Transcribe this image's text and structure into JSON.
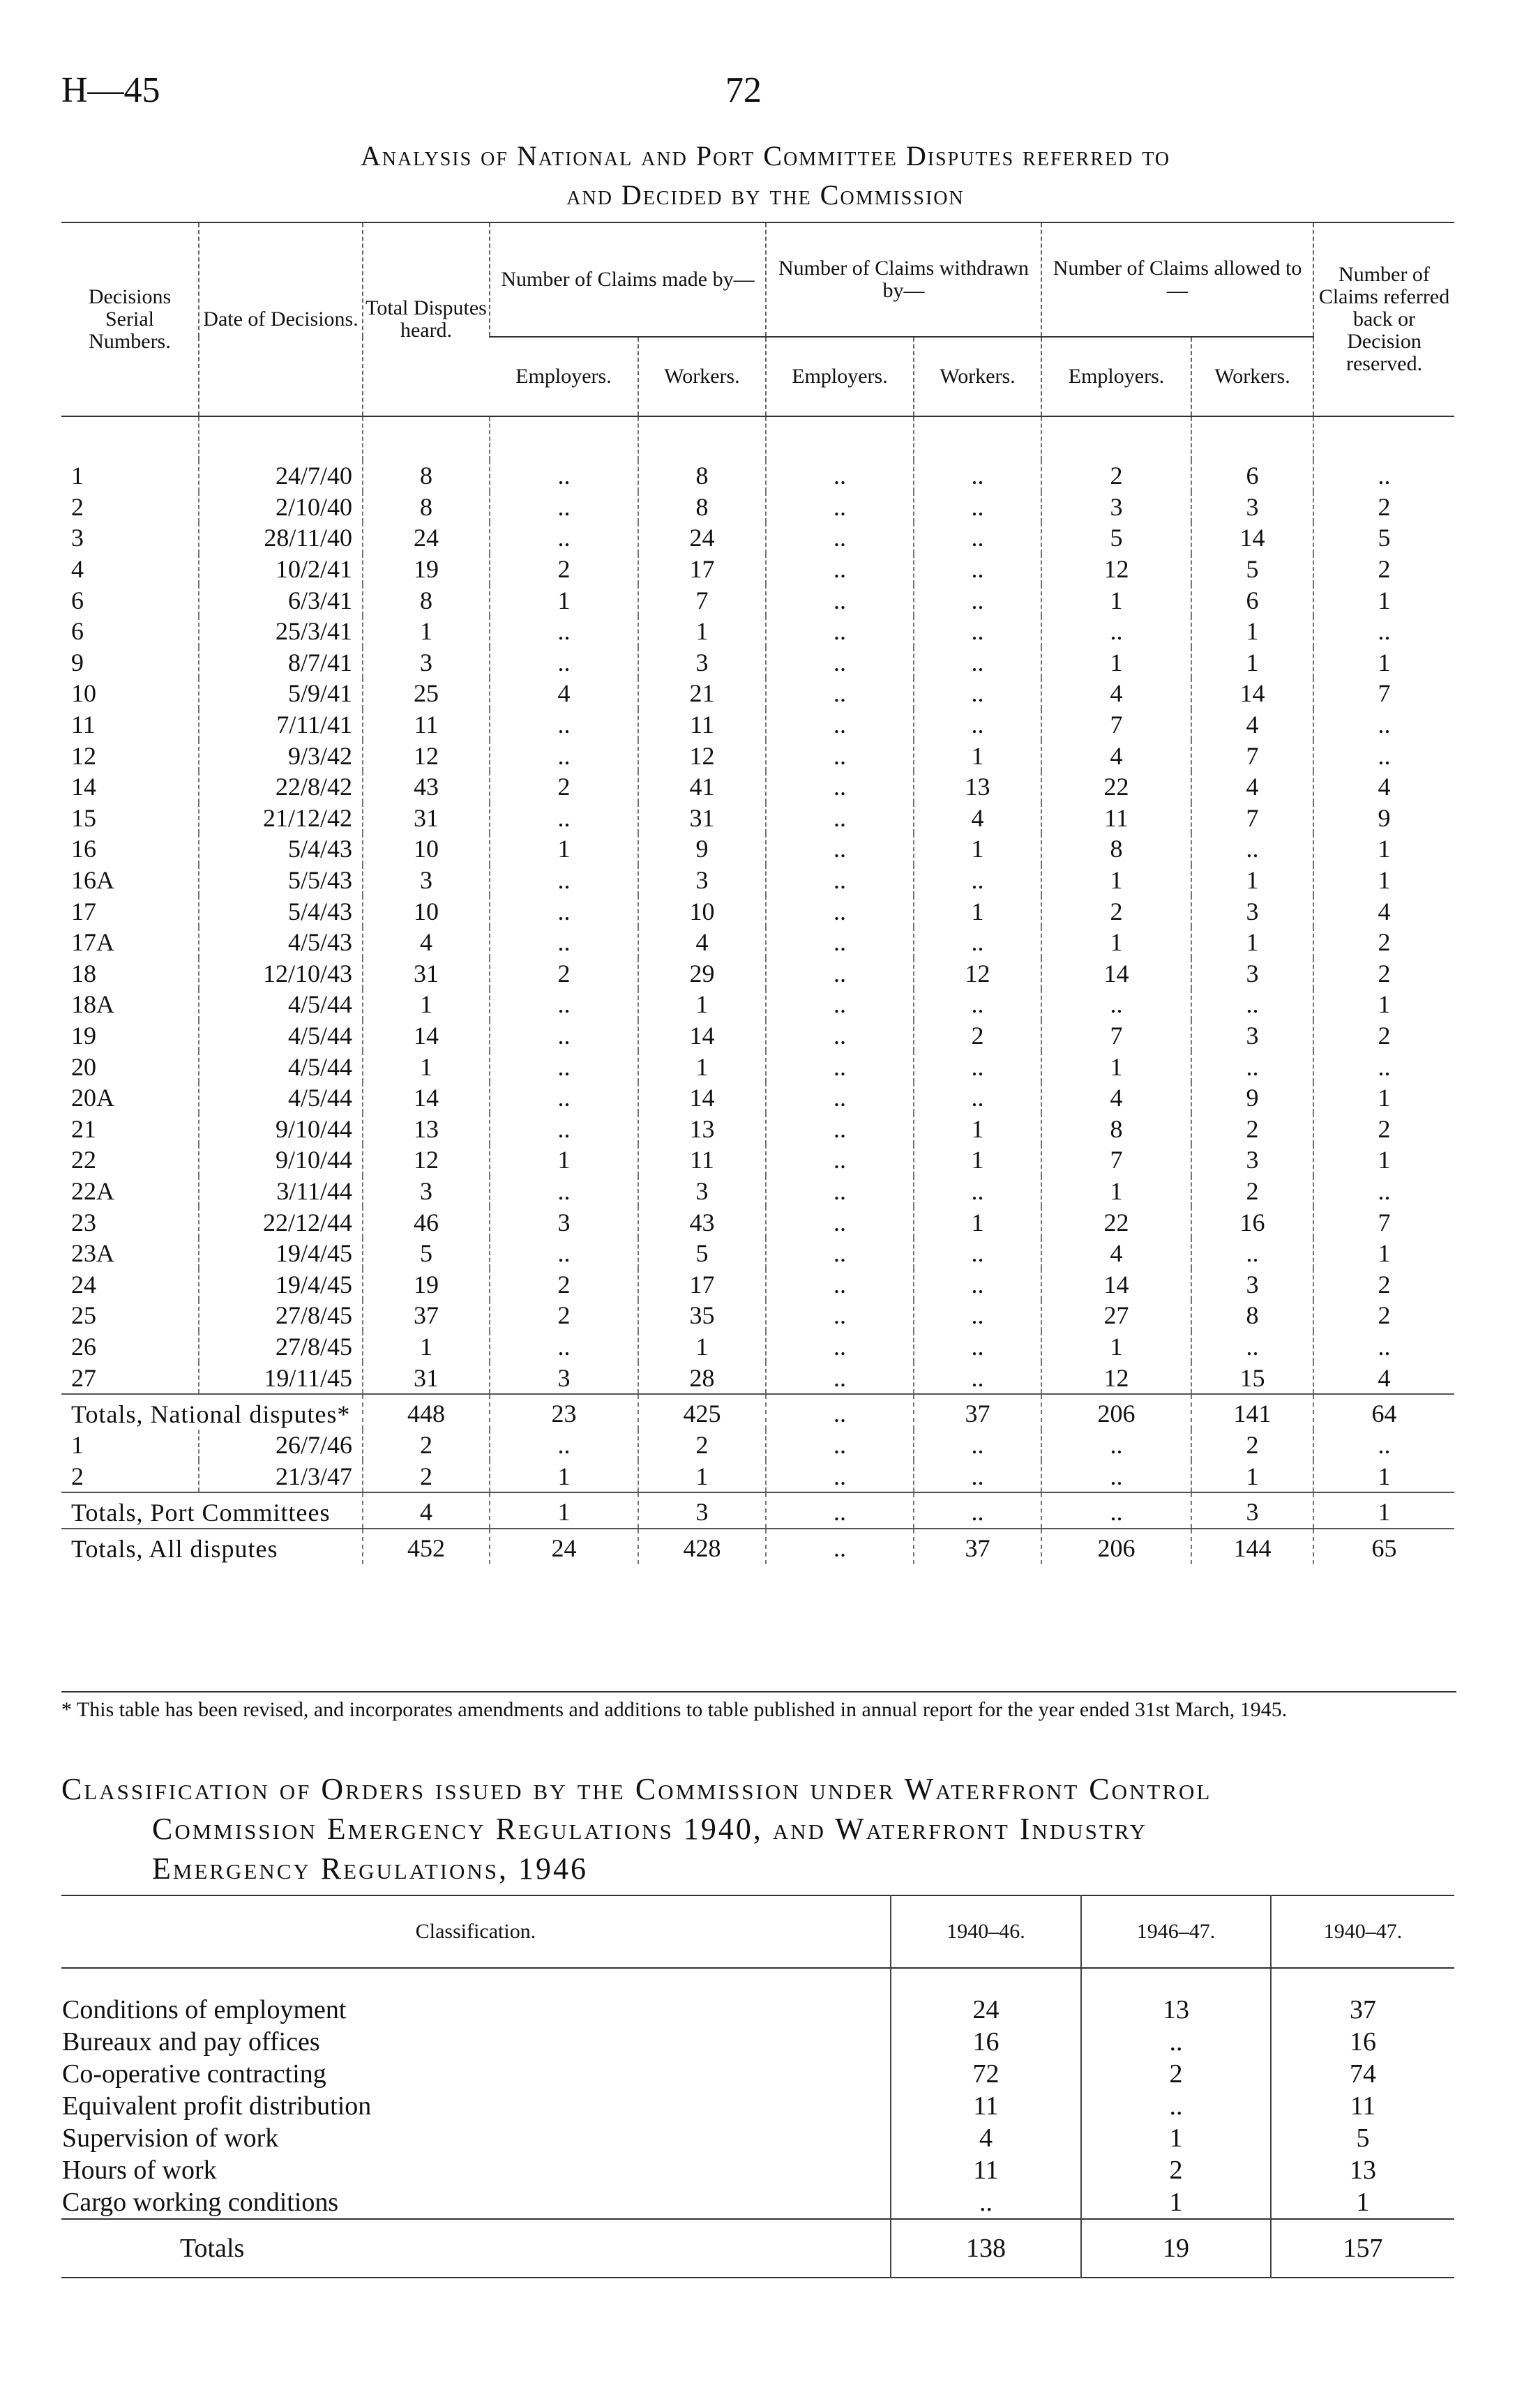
{
  "header": {
    "ref": "H—45",
    "page": "72"
  },
  "table1": {
    "title_line1": "Analysis of National and Port Committee Disputes referred to",
    "title_line2": "and Decided by the Commission",
    "headers": {
      "serial": "Decisions Serial Numbers.",
      "date": "Date of Decisions.",
      "total": "Total Disputes heard.",
      "made": "Number of Claims made by—",
      "withdrawn": "Number of Claims withdrawn by—",
      "allowed": "Number of Claims allowed to—",
      "referred": "Number of Claims referred back or Decision reserved.",
      "employers": "Employers.",
      "workers": "Workers."
    },
    "rows": [
      [
        "1",
        "24/7/40",
        "8",
        "..",
        "8",
        "..",
        "..",
        "2",
        "6",
        ".."
      ],
      [
        "2",
        "2/10/40",
        "8",
        "..",
        "8",
        "..",
        "..",
        "3",
        "3",
        "2"
      ],
      [
        "3",
        "28/11/40",
        "24",
        "..",
        "24",
        "..",
        "..",
        "5",
        "14",
        "5"
      ],
      [
        "4",
        "10/2/41",
        "19",
        "2",
        "17",
        "..",
        "..",
        "12",
        "5",
        "2"
      ],
      [
        "6",
        "6/3/41",
        "8",
        "1",
        "7",
        "..",
        "..",
        "1",
        "6",
        "1"
      ],
      [
        "6",
        "25/3/41",
        "1",
        "..",
        "1",
        "..",
        "..",
        "..",
        "1",
        ".."
      ],
      [
        "9",
        "8/7/41",
        "3",
        "..",
        "3",
        "..",
        "..",
        "1",
        "1",
        "1"
      ],
      [
        "10",
        "5/9/41",
        "25",
        "4",
        "21",
        "..",
        "..",
        "4",
        "14",
        "7"
      ],
      [
        "11",
        "7/11/41",
        "11",
        "..",
        "11",
        "..",
        "..",
        "7",
        "4",
        ".."
      ],
      [
        "12",
        "9/3/42",
        "12",
        "..",
        "12",
        "..",
        "1",
        "4",
        "7",
        ".."
      ],
      [
        "14",
        "22/8/42",
        "43",
        "2",
        "41",
        "..",
        "13",
        "22",
        "4",
        "4"
      ],
      [
        "15",
        "21/12/42",
        "31",
        "..",
        "31",
        "..",
        "4",
        "11",
        "7",
        "9"
      ],
      [
        "16",
        "5/4/43",
        "10",
        "1",
        "9",
        "..",
        "1",
        "8",
        "..",
        "1"
      ],
      [
        "16A",
        "5/5/43",
        "3",
        "..",
        "3",
        "..",
        "..",
        "1",
        "1",
        "1"
      ],
      [
        "17",
        "5/4/43",
        "10",
        "..",
        "10",
        "..",
        "1",
        "2",
        "3",
        "4"
      ],
      [
        "17A",
        "4/5/43",
        "4",
        "..",
        "4",
        "..",
        "..",
        "1",
        "1",
        "2"
      ],
      [
        "18",
        "12/10/43",
        "31",
        "2",
        "29",
        "..",
        "12",
        "14",
        "3",
        "2"
      ],
      [
        "18A",
        "4/5/44",
        "1",
        "..",
        "1",
        "..",
        "..",
        "..",
        "..",
        "1"
      ],
      [
        "19",
        "4/5/44",
        "14",
        "..",
        "14",
        "..",
        "2",
        "7",
        "3",
        "2"
      ],
      [
        "20",
        "4/5/44",
        "1",
        "..",
        "1",
        "..",
        "..",
        "1",
        "..",
        ".."
      ],
      [
        "20A",
        "4/5/44",
        "14",
        "..",
        "14",
        "..",
        "..",
        "4",
        "9",
        "1"
      ],
      [
        "21",
        "9/10/44",
        "13",
        "..",
        "13",
        "..",
        "1",
        "8",
        "2",
        "2"
      ],
      [
        "22",
        "9/10/44",
        "12",
        "1",
        "11",
        "..",
        "1",
        "7",
        "3",
        "1"
      ],
      [
        "22A",
        "3/11/44",
        "3",
        "..",
        "3",
        "..",
        "..",
        "1",
        "2",
        ".."
      ],
      [
        "23",
        "22/12/44",
        "46",
        "3",
        "43",
        "..",
        "1",
        "22",
        "16",
        "7"
      ],
      [
        "23A",
        "19/4/45",
        "5",
        "..",
        "5",
        "..",
        "..",
        "4",
        "..",
        "1"
      ],
      [
        "24",
        "19/4/45",
        "19",
        "2",
        "17",
        "..",
        "..",
        "14",
        "3",
        "2"
      ],
      [
        "25",
        "27/8/45",
        "37",
        "2",
        "35",
        "..",
        "..",
        "27",
        "8",
        "2"
      ],
      [
        "26",
        "27/8/45",
        "1",
        "..",
        "1",
        "..",
        "..",
        "1",
        "..",
        ".."
      ],
      [
        "27",
        "19/11/45",
        "31",
        "3",
        "28",
        "..",
        "..",
        "12",
        "15",
        "4"
      ]
    ],
    "totals_national": {
      "label": "Totals, National disputes*",
      "values": [
        "448",
        "23",
        "425",
        "..",
        "37",
        "206",
        "141",
        "64"
      ]
    },
    "port_rows": [
      [
        "1",
        "26/7/46",
        "2",
        "..",
        "2",
        "..",
        "..",
        "..",
        "2",
        ".."
      ],
      [
        "2",
        "21/3/47",
        "2",
        "1",
        "1",
        "..",
        "..",
        "..",
        "1",
        "1"
      ]
    ],
    "totals_port": {
      "label": "Totals, Port Committees",
      "values": [
        "4",
        "1",
        "3",
        "..",
        "..",
        "..",
        "3",
        "1"
      ]
    },
    "totals_all": {
      "label": "Totals, All disputes",
      "values": [
        "452",
        "24",
        "428",
        "..",
        "37",
        "206",
        "144",
        "65"
      ]
    },
    "footnote": "* This table has been revised, and incorporates amendments and additions to table published in annual report for the year ended 31st March, 1945."
  },
  "table2": {
    "title_line1": "Classification of Orders issued by the Commission under Waterfront Control",
    "title_line2": "Commission Emergency Regulations 1940, and Waterfront Industry",
    "title_line3": "Emergency Regulations, 1946",
    "headers": [
      "Classification.",
      "1940–46.",
      "1946–47.",
      "1940–47."
    ],
    "rows": [
      [
        "Conditions of employment",
        "24",
        "13",
        "37"
      ],
      [
        "Bureaux and pay offices",
        "16",
        "..",
        "16"
      ],
      [
        "Co-operative contracting",
        "72",
        "2",
        "74"
      ],
      [
        "Equivalent profit distribution",
        "11",
        "..",
        "11"
      ],
      [
        "Supervision of work",
        "4",
        "1",
        "5"
      ],
      [
        "Hours of work",
        "11",
        "2",
        "13"
      ],
      [
        "Cargo working conditions",
        "..",
        "1",
        "1"
      ]
    ],
    "totals": [
      "Totals",
      "138",
      "19",
      "157"
    ]
  }
}
